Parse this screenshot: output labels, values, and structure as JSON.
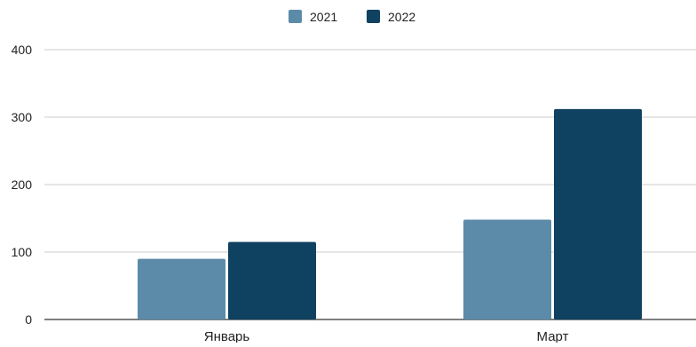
{
  "chart_data": {
    "type": "bar",
    "categories": [
      "Январь",
      "Март"
    ],
    "series": [
      {
        "name": "2021",
        "values": [
          90,
          148
        ],
        "color": "#5b8ba9"
      },
      {
        "name": "2022",
        "values": [
          115,
          312
        ],
        "color": "#0f4160"
      }
    ],
    "yticks": [
      0,
      100,
      200,
      300,
      400
    ],
    "ylim": [
      0,
      400
    ],
    "grid": true,
    "legend_position": "top-center"
  }
}
